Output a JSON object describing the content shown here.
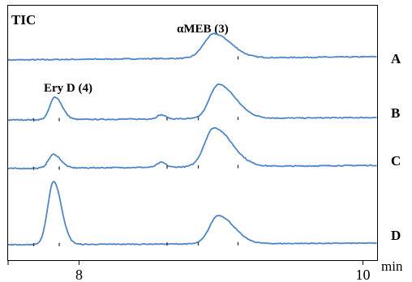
{
  "chart_data": {
    "type": "line",
    "title": "TIC",
    "xlabel": "min",
    "ylabel": "",
    "xlim": [
      7.5,
      10.1
    ],
    "x_ticks": [
      8,
      10
    ],
    "x_tick_labels": [
      "8",
      "10"
    ],
    "peak_labels": [
      {
        "text": "αMEB (3)",
        "x": 9.0
      },
      {
        "text": "Ery D (4)",
        "x": 7.85
      }
    ],
    "baseline_markers": [
      7.68,
      7.86,
      8.62,
      8.84,
      9.12
    ],
    "series": [
      {
        "name": "A",
        "baseline": 0.0,
        "drift": 0.04,
        "noise": 0.012,
        "peaks": [
          {
            "x": 8.95,
            "height": 0.3,
            "width": 0.07,
            "tail": 0.05
          }
        ]
      },
      {
        "name": "B",
        "baseline": 0.0,
        "drift": 0.03,
        "noise": 0.012,
        "peaks": [
          {
            "x": 7.83,
            "height": 0.28,
            "width": 0.035,
            "tail": 0.015
          },
          {
            "x": 8.58,
            "height": 0.05,
            "width": 0.03,
            "tail": 0.0
          },
          {
            "x": 8.98,
            "height": 0.42,
            "width": 0.06,
            "tail": 0.06
          }
        ]
      },
      {
        "name": "C",
        "baseline": 0.0,
        "drift": 0.04,
        "noise": 0.012,
        "peaks": [
          {
            "x": 7.82,
            "height": 0.17,
            "width": 0.035,
            "tail": 0.015
          },
          {
            "x": 8.58,
            "height": 0.06,
            "width": 0.03,
            "tail": 0.0
          },
          {
            "x": 8.95,
            "height": 0.48,
            "width": 0.065,
            "tail": 0.06
          }
        ]
      },
      {
        "name": "D",
        "baseline": 0.0,
        "drift": 0.02,
        "noise": 0.01,
        "peaks": [
          {
            "x": 7.82,
            "height": 0.78,
            "width": 0.04,
            "tail": 0.015
          },
          {
            "x": 8.98,
            "height": 0.35,
            "width": 0.06,
            "tail": 0.05
          }
        ]
      }
    ]
  }
}
